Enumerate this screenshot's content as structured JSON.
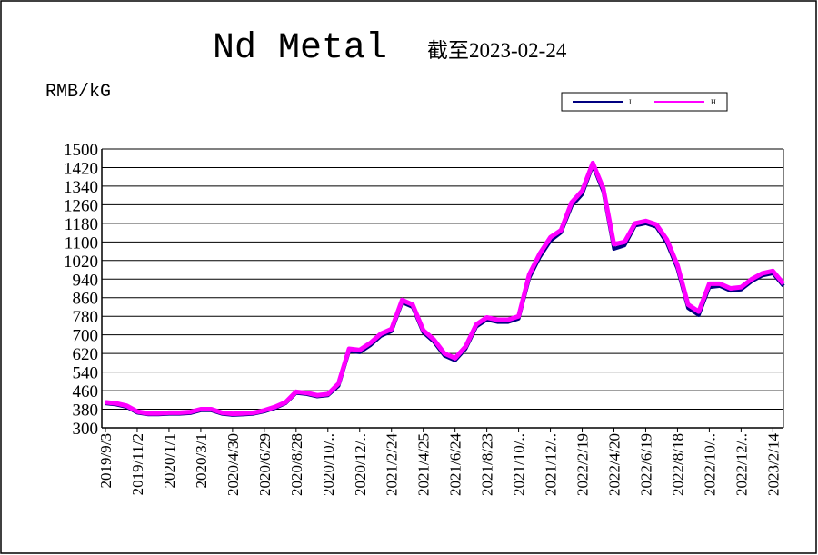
{
  "chart_data": {
    "type": "line",
    "title": "Nd Metal",
    "subtitle": "截至2023-02-24",
    "y_label": "RMB/kG",
    "categories": [
      "2019/9/3",
      null,
      null,
      "2019/11/2",
      null,
      null,
      "2020/1/1",
      null,
      null,
      "2020/3/1",
      null,
      null,
      "2020/4/30",
      null,
      null,
      "2020/6/29",
      null,
      null,
      "2020/8/28",
      null,
      null,
      "2020/10/..",
      null,
      null,
      "2020/12/..",
      null,
      null,
      "2021/2/24",
      null,
      null,
      "2021/4/25",
      null,
      null,
      "2021/6/24",
      null,
      null,
      "2021/8/23",
      null,
      null,
      "2021/10/..",
      null,
      null,
      "2021/12/..",
      null,
      null,
      "2022/2/19",
      null,
      null,
      "2022/4/20",
      null,
      null,
      "2022/6/19",
      null,
      null,
      "2022/8/18",
      null,
      null,
      "2022/10/..",
      null,
      null,
      "2022/12/..",
      null,
      null,
      "2023/2/14",
      null
    ],
    "series": [
      {
        "name": "L",
        "color": "#000080",
        "values": [
          405,
          400,
          390,
          365,
          358,
          358,
          360,
          360,
          363,
          375,
          375,
          360,
          355,
          357,
          360,
          370,
          385,
          405,
          450,
          445,
          435,
          440,
          480,
          630,
          625,
          655,
          695,
          715,
          840,
          820,
          710,
          670,
          610,
          590,
          640,
          735,
          765,
          755,
          755,
          770,
          945,
          1035,
          1105,
          1140,
          1255,
          1305,
          1430,
          1315,
          1070,
          1085,
          1170,
          1180,
          1165,
          1095,
          985,
          815,
          785,
          905,
          910,
          890,
          895,
          930,
          955,
          965,
          910
        ]
      },
      {
        "name": "H",
        "color": "#ff00ff",
        "values": [
          410,
          405,
          395,
          370,
          362,
          362,
          365,
          365,
          368,
          380,
          380,
          365,
          360,
          362,
          365,
          375,
          390,
          410,
          455,
          450,
          440,
          445,
          490,
          640,
          635,
          665,
          705,
          725,
          850,
          830,
          720,
          680,
          620,
          600,
          650,
          745,
          775,
          765,
          765,
          780,
          960,
          1050,
          1120,
          1150,
          1270,
          1320,
          1440,
          1330,
          1090,
          1100,
          1180,
          1190,
          1175,
          1110,
          1000,
          830,
          800,
          920,
          920,
          900,
          905,
          940,
          965,
          975,
          920
        ]
      }
    ],
    "ylim": [
      300,
      1500
    ],
    "yticks": [
      300,
      380,
      460,
      540,
      620,
      700,
      780,
      860,
      940,
      1020,
      1100,
      1180,
      1260,
      1340,
      1420,
      1500
    ],
    "grid": true
  }
}
